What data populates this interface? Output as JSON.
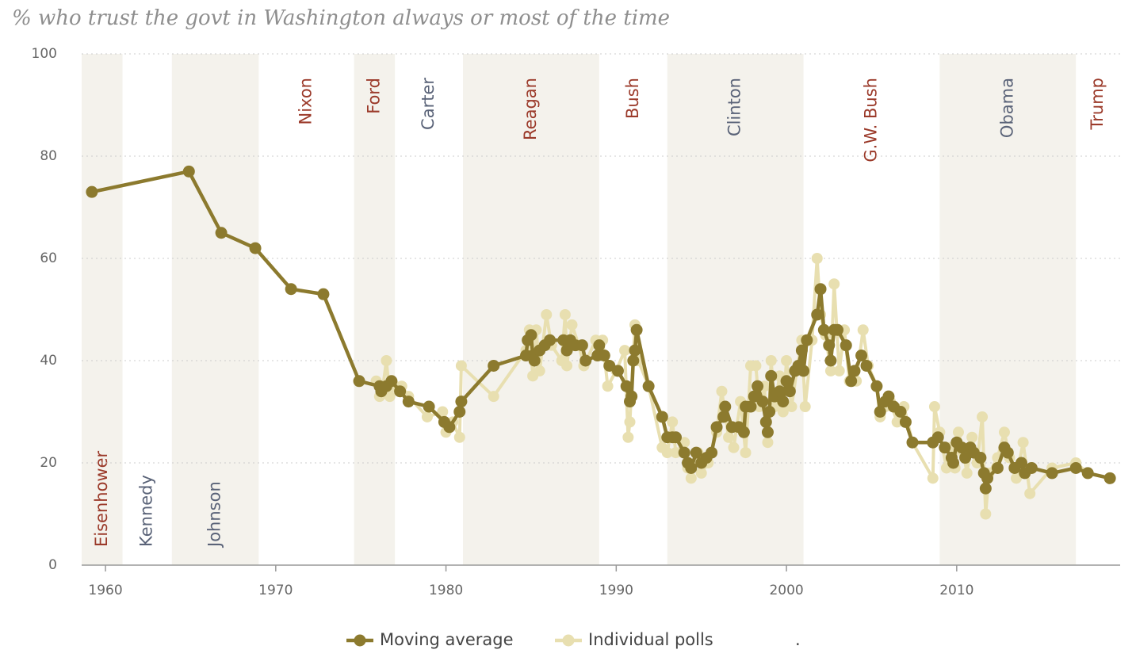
{
  "chart_data": {
    "type": "line",
    "title": "% who trust the govt in Washington always or most of the time",
    "xlim": [
      1958.6,
      2019.6
    ],
    "xticks": [
      1960,
      1970,
      1980,
      1990,
      2000,
      2010
    ],
    "ylim": [
      0,
      100
    ],
    "yticks": [
      0,
      20,
      40,
      60,
      80,
      100
    ],
    "grid": true,
    "band_color": "#f4f2ec",
    "presidents": [
      {
        "name": "Eisenhower",
        "start": 1953,
        "color": "#9b3a2a",
        "label_position": "bottom"
      },
      {
        "name": "Kennedy",
        "start": 1961,
        "color": "#5a6378",
        "label_position": "bottom"
      },
      {
        "name": "Johnson",
        "start": 1963.9,
        "color": "#5a6378",
        "label_position": "bottom"
      },
      {
        "name": "Nixon",
        "start": 1969,
        "color": "#9b3a2a",
        "label_position": "top"
      },
      {
        "name": "Ford",
        "start": 1974.6,
        "color": "#9b3a2a",
        "label_position": "top"
      },
      {
        "name": "Carter",
        "start": 1977,
        "color": "#5a6378",
        "label_position": "top"
      },
      {
        "name": "Reagan",
        "start": 1981,
        "color": "#9b3a2a",
        "label_position": "top"
      },
      {
        "name": "Bush",
        "start": 1989,
        "color": "#9b3a2a",
        "label_position": "top"
      },
      {
        "name": "Clinton",
        "start": 1993,
        "color": "#5a6378",
        "label_position": "top"
      },
      {
        "name": "G.W. Bush",
        "start": 2001,
        "color": "#9b3a2a",
        "label_position": "top"
      },
      {
        "name": "Obama",
        "start": 2009,
        "color": "#5a6378",
        "label_position": "top"
      },
      {
        "name": "Trump",
        "start": 2017,
        "color": "#9b3a2a",
        "label_position": "top"
      }
    ],
    "series": [
      {
        "name": "Individual polls",
        "color": "#e8dfb0",
        "x": [
          1975.9,
          1976.1,
          1976.3,
          1976.5,
          1976.7,
          1977.0,
          1977.4,
          1977.8,
          1978.9,
          1979.8,
          1980.0,
          1980.4,
          1980.8,
          1980.9,
          1982.8,
          1984.7,
          1984.9,
          1985.1,
          1985.3,
          1985.5,
          1985.9,
          1986.2,
          1986.8,
          1987.0,
          1987.1,
          1987.4,
          1987.8,
          1988.1,
          1988.8,
          1989.2,
          1989.5,
          1990.0,
          1990.5,
          1990.7,
          1990.8,
          1991.1,
          1991.3,
          1991.9,
          1992.7,
          1993.0,
          1993.3,
          1993.5,
          1994.0,
          1994.2,
          1994.4,
          1994.8,
          1995.0,
          1995.4,
          1995.9,
          1996.2,
          1996.6,
          1996.9,
          1997.3,
          1997.6,
          1997.9,
          1998.2,
          1998.4,
          1998.7,
          1998.9,
          1999.1,
          1999.3,
          1999.6,
          1999.8,
          2000.0,
          2000.3,
          2000.6,
          2000.9,
          2001.1,
          2001.5,
          2001.8,
          2002.0,
          2002.3,
          2002.6,
          2002.8,
          2003.1,
          2003.4,
          2003.7,
          2004.1,
          2004.5,
          2004.8,
          2005.3,
          2005.5,
          2005.8,
          2006.1,
          2006.5,
          2006.9,
          2007.4,
          2008.6,
          2008.7,
          2009.0,
          2009.4,
          2009.6,
          2009.9,
          2010.1,
          2010.4,
          2010.6,
          2010.9,
          2011.2,
          2011.5,
          2011.7,
          2011.9,
          2012.4,
          2012.8,
          2013.1,
          2013.5,
          2013.9,
          2014.3,
          2015.6,
          2017.0,
          2017.7,
          2019.0
        ],
        "values": [
          36,
          33,
          35,
          40,
          33,
          35,
          35,
          33,
          29,
          30,
          26,
          28,
          25,
          39,
          33,
          42,
          46,
          37,
          46,
          38,
          49,
          43,
          40,
          49,
          39,
          47,
          43,
          39,
          44,
          44,
          35,
          38,
          42,
          25,
          28,
          47,
          40,
          35,
          23,
          22,
          28,
          22,
          24,
          19,
          17,
          22,
          18,
          20,
          26,
          34,
          25,
          23,
          32,
          22,
          39,
          39,
          31,
          35,
          24,
          40,
          31,
          37,
          30,
          40,
          31,
          38,
          44,
          31,
          44,
          60,
          49,
          45,
          38,
          55,
          38,
          46,
          36,
          36,
          46,
          39,
          35,
          29,
          31,
          32,
          28,
          31,
          24,
          17,
          31,
          26,
          19,
          23,
          19,
          26,
          22,
          18,
          25,
          20,
          29,
          10,
          18,
          21,
          26,
          21,
          17,
          24,
          14,
          19,
          20,
          18,
          17
        ]
      },
      {
        "name": "Moving average",
        "color": "#8c7a2e",
        "x": [
          1959.2,
          1964.9,
          1966.8,
          1968.8,
          1970.9,
          1972.8,
          1974.9,
          1976.1,
          1976.2,
          1976.5,
          1976.8,
          1977.3,
          1977.8,
          1979.0,
          1979.9,
          1980.2,
          1980.8,
          1980.9,
          1982.8,
          1984.7,
          1984.8,
          1985.0,
          1985.1,
          1985.2,
          1985.5,
          1985.8,
          1986.1,
          1986.9,
          1987.1,
          1987.3,
          1987.6,
          1988.0,
          1988.2,
          1988.9,
          1989.0,
          1989.3,
          1989.6,
          1990.1,
          1990.6,
          1990.8,
          1990.9,
          1991.0,
          1991.1,
          1991.2,
          1991.9,
          1992.7,
          1993.0,
          1993.3,
          1993.5,
          1994.0,
          1994.2,
          1994.4,
          1994.7,
          1995.0,
          1995.3,
          1995.6,
          1995.9,
          1996.3,
          1996.4,
          1996.8,
          1997.2,
          1997.5,
          1997.6,
          1997.9,
          1998.1,
          1998.3,
          1998.6,
          1998.8,
          1998.9,
          1999.0,
          1999.1,
          1999.3,
          1999.6,
          1999.8,
          2000.0,
          2000.2,
          2000.5,
          2000.7,
          2000.9,
          2001.0,
          2001.2,
          2001.8,
          2002.0,
          2002.2,
          2002.5,
          2002.6,
          2002.8,
          2003.0,
          2003.5,
          2003.8,
          2004.0,
          2004.4,
          2004.7,
          2005.3,
          2005.5,
          2005.8,
          2006.0,
          2006.3,
          2006.7,
          2007.0,
          2007.4,
          2008.6,
          2008.9,
          2009.3,
          2009.7,
          2009.8,
          2010.0,
          2010.3,
          2010.5,
          2010.8,
          2011.0,
          2011.4,
          2011.6,
          2011.7,
          2011.8,
          2012.4,
          2012.8,
          2013.0,
          2013.4,
          2013.8,
          2014.0,
          2014.4,
          2015.6,
          2017.0,
          2017.7,
          2019.0
        ],
        "values": [
          73,
          77,
          65,
          62,
          54,
          53,
          36,
          35,
          34,
          35,
          36,
          34,
          32,
          31,
          28,
          27,
          30,
          32,
          39,
          41,
          44,
          45,
          41,
          40,
          42,
          43,
          44,
          44,
          42,
          44,
          43,
          43,
          40,
          41,
          43,
          41,
          39,
          38,
          35,
          32,
          33,
          40,
          42,
          46,
          35,
          29,
          25,
          25,
          25,
          22,
          20,
          19,
          22,
          20,
          21,
          22,
          27,
          29,
          31,
          27,
          27,
          26,
          31,
          31,
          33,
          35,
          32,
          28,
          26,
          30,
          37,
          33,
          34,
          32,
          36,
          34,
          38,
          39,
          42,
          38,
          44,
          49,
          54,
          46,
          43,
          40,
          46,
          46,
          43,
          36,
          38,
          41,
          39,
          35,
          30,
          32,
          33,
          31,
          30,
          28,
          24,
          24,
          25,
          23,
          21,
          20,
          24,
          23,
          21,
          23,
          22,
          21,
          18,
          15,
          17,
          19,
          23,
          22,
          19,
          20,
          18,
          19,
          18,
          19,
          18,
          17
        ]
      }
    ],
    "footnote": "."
  }
}
